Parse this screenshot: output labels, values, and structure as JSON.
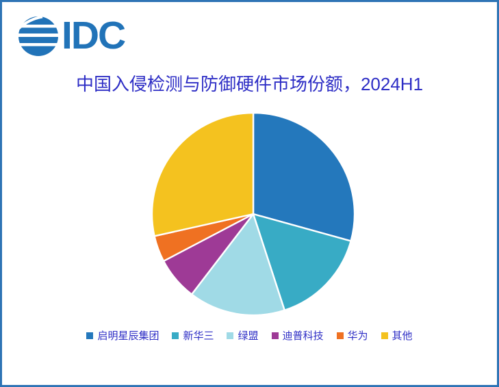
{
  "logo": {
    "text": "IDC",
    "icon": "idc-globe-icon",
    "color": "#2173B8"
  },
  "chart_data": {
    "type": "pie",
    "title": "中国入侵检测与防御硬件市场份额，2024H1",
    "start_angle_deg": 0,
    "direction": "clockwise",
    "legend_position": "bottom",
    "unit": "%",
    "series": [
      {
        "name": "启明星辰集团",
        "value": 29.3,
        "color": "#2478BC"
      },
      {
        "name": "新华三",
        "value": 15.7,
        "color": "#38ABC5"
      },
      {
        "name": "绿盟",
        "value": 15.4,
        "color": "#A0DAE6"
      },
      {
        "name": "迪普科技",
        "value": 6.9,
        "color": "#9E3A96"
      },
      {
        "name": "华为",
        "value": 4.2,
        "color": "#EF7122"
      },
      {
        "name": "其他",
        "value": 28.5,
        "color": "#F4C21F"
      }
    ]
  },
  "colors": {
    "frame_border": "#2E74B5",
    "title_text": "#2D2DC5",
    "slice_border": "#FFFFFF",
    "background": "#FFFFFF"
  }
}
